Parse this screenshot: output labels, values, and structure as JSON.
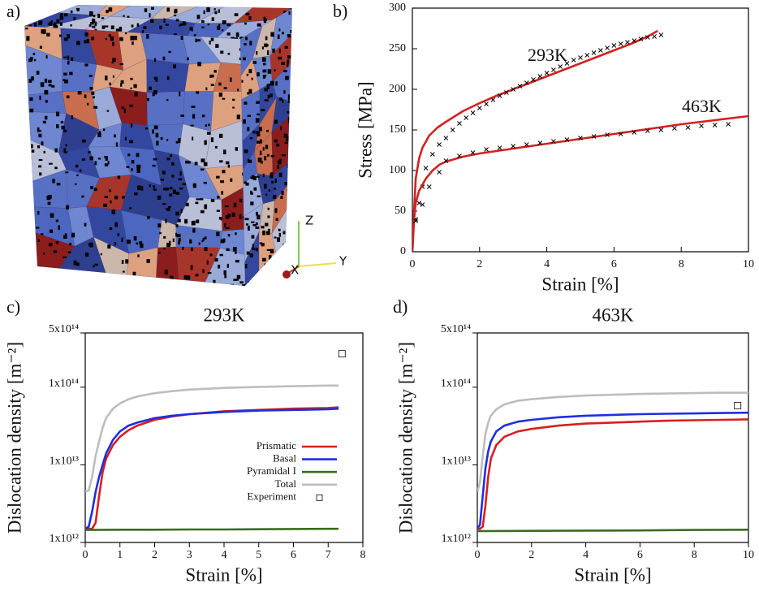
{
  "figure": {
    "panel_labels": [
      "a)",
      "b)",
      "c)",
      "d)"
    ],
    "triad": {
      "x": "X",
      "y": "Y",
      "z": "Z"
    }
  },
  "chart_data": [
    {
      "type": "line",
      "xlabel": "Strain [%]",
      "ylabel": "Stress [MPa]",
      "xlim": [
        0,
        10
      ],
      "xticks": [
        0,
        2,
        4,
        6,
        8,
        10
      ],
      "ylim": [
        0,
        300
      ],
      "yticks": [
        0,
        50,
        100,
        150,
        200,
        250,
        300
      ],
      "legend": false,
      "series": [
        {
          "name": "293K",
          "color": "#d42020",
          "style": "line",
          "x": [
            0,
            0.05,
            0.1,
            0.2,
            0.3,
            0.5,
            0.75,
            1,
            1.5,
            2,
            2.5,
            3,
            3.5,
            4,
            4.5,
            5,
            5.5,
            6,
            6.5,
            7,
            7.3
          ],
          "values": [
            0,
            50,
            90,
            115,
            128,
            143,
            153,
            160,
            173,
            183,
            192,
            200,
            208,
            216,
            224,
            232,
            240,
            248,
            256,
            265,
            272
          ]
        },
        {
          "color": "#000000",
          "style": "x",
          "x": [
            0.1,
            0.2,
            0.3,
            0.4,
            0.6,
            0.8,
            1,
            1.2,
            1.4,
            1.6,
            1.8,
            2,
            2.2,
            2.4,
            2.6,
            2.8,
            3,
            3.2,
            3.4,
            3.6,
            3.8,
            4,
            4.2,
            4.4,
            4.6,
            4.8,
            5,
            5.2,
            5.4,
            5.6,
            5.8,
            6,
            6.2,
            6.4,
            6.6,
            6.8,
            7,
            7.2,
            7.4
          ],
          "values": [
            40,
            60,
            80,
            103,
            120,
            132,
            140,
            150,
            158,
            165,
            171,
            177,
            182,
            187,
            192,
            196,
            200,
            204,
            208,
            212,
            216,
            220,
            224,
            228,
            232,
            236,
            239,
            242,
            245,
            248,
            251,
            254,
            256,
            258,
            260,
            262,
            264,
            265,
            267
          ]
        },
        {
          "name": "463K",
          "color": "#d42020",
          "style": "line",
          "x": [
            0,
            0.05,
            0.1,
            0.2,
            0.4,
            0.6,
            0.8,
            1,
            1.5,
            2,
            3,
            4,
            5,
            6,
            7,
            8,
            9,
            10
          ],
          "values": [
            0,
            40,
            60,
            75,
            90,
            100,
            107,
            111,
            117,
            121,
            127,
            133,
            139,
            145,
            151,
            157,
            162,
            167
          ]
        },
        {
          "color": "#000000",
          "style": "x",
          "x": [
            0.1,
            0.3,
            0.5,
            0.8,
            1,
            1.4,
            1.8,
            2.2,
            2.6,
            3,
            3.4,
            3.8,
            4.2,
            4.6,
            5,
            5.4,
            5.8,
            6.2,
            6.6,
            7,
            7.4,
            7.8,
            8.2,
            8.6,
            9,
            9.4
          ],
          "values": [
            38,
            58,
            80,
            98,
            112,
            118,
            122,
            126,
            128,
            130,
            132,
            134,
            136,
            138,
            140,
            142,
            144,
            145,
            147,
            149,
            150,
            152,
            153,
            155,
            156,
            157
          ]
        }
      ]
    },
    {
      "type": "line",
      "title": "293K",
      "xlabel": "Strain [%]",
      "ylabel": "Dislocation density [m⁻²]",
      "xlim": [
        0,
        8
      ],
      "xticks": [
        0,
        1,
        2,
        3,
        4,
        5,
        6,
        7,
        8
      ],
      "yscale": "log",
      "ylim": [
        1000000000000.0,
        500000000000000.0
      ],
      "yticks": [
        {
          "value": 1000000000000.0,
          "label": "1x10¹²"
        },
        {
          "value": 10000000000000.0,
          "label": "1x10¹³"
        },
        {
          "value": 100000000000000.0,
          "label": "1x10¹⁴"
        },
        {
          "value": 500000000000000.0,
          "label": "5x10¹⁴"
        }
      ],
      "legend": true,
      "series": [
        {
          "name": "Prismatic",
          "color": "#d71f1f",
          "style": "line",
          "x": [
            0,
            0.1,
            0.2,
            0.3,
            0.4,
            0.5,
            0.6,
            0.8,
            1,
            1.25,
            1.5,
            2,
            2.5,
            3,
            4,
            5,
            6,
            7,
            7.3
          ],
          "values": [
            1500000000000.0,
            1500000000000.0,
            1500000000000.0,
            1800000000000.0,
            4000000000000.0,
            8000000000000.0,
            12000000000000.0,
            18000000000000.0,
            23000000000000.0,
            28000000000000.0,
            32000000000000.0,
            38000000000000.0,
            42000000000000.0,
            45000000000000.0,
            49000000000000.0,
            51000000000000.0,
            53000000000000.0,
            54000000000000.0,
            55000000000000.0
          ]
        },
        {
          "name": "Basal",
          "color": "#1f2ee0",
          "style": "line",
          "x": [
            0,
            0.1,
            0.2,
            0.3,
            0.4,
            0.5,
            0.6,
            0.8,
            1,
            1.25,
            1.5,
            2,
            2.5,
            3,
            4,
            5,
            6,
            7,
            7.3
          ],
          "values": [
            1500000000000.0,
            1600000000000.0,
            2500000000000.0,
            4500000000000.0,
            7000000000000.0,
            10000000000000.0,
            14000000000000.0,
            21000000000000.0,
            27000000000000.0,
            32000000000000.0,
            35000000000000.0,
            40000000000000.0,
            43000000000000.0,
            45000000000000.0,
            48000000000000.0,
            50000000000000.0,
            51000000000000.0,
            52000000000000.0,
            53000000000000.0
          ]
        },
        {
          "name": "Pyramidal I",
          "color": "#3b6b1c",
          "style": "line",
          "x": [
            0,
            1,
            2,
            3,
            4,
            5,
            6,
            7,
            7.3
          ],
          "values": [
            1450000000000.0,
            1460000000000.0,
            1460000000000.0,
            1470000000000.0,
            1470000000000.0,
            1480000000000.0,
            1490000000000.0,
            1500000000000.0,
            1500000000000.0
          ]
        },
        {
          "name": "Total",
          "color": "#bdbdbd",
          "style": "line",
          "x": [
            0,
            0.1,
            0.2,
            0.3,
            0.4,
            0.5,
            0.6,
            0.8,
            1,
            1.25,
            1.5,
            2,
            2.5,
            3,
            4,
            5,
            6,
            7,
            7.3
          ],
          "values": [
            4500000000000.0,
            4700000000000.0,
            7000000000000.0,
            13000000000000.0,
            20000000000000.0,
            30000000000000.0,
            40000000000000.0,
            53000000000000.0,
            62000000000000.0,
            70000000000000.0,
            76000000000000.0,
            84000000000000.0,
            89000000000000.0,
            93000000000000.0,
            98000000000000.0,
            101000000000000.0,
            103000000000000.0,
            105000000000000.0,
            105000000000000.0
          ]
        },
        {
          "name": "Experiment",
          "color": "#333333",
          "style": "square",
          "x": [
            7.4
          ],
          "values": [
            270000000000000.0
          ]
        }
      ]
    },
    {
      "type": "line",
      "title": "463K",
      "xlabel": "Strain [%]",
      "ylabel": "Dislocation density [m⁻²]",
      "xlim": [
        0,
        10
      ],
      "xticks": [
        0,
        2,
        4,
        6,
        8,
        10
      ],
      "yscale": "log",
      "ylim": [
        1000000000000.0,
        500000000000000.0
      ],
      "yticks": [
        {
          "value": 1000000000000.0,
          "label": "1x10¹²"
        },
        {
          "value": 10000000000000.0,
          "label": "1x10¹³"
        },
        {
          "value": 100000000000000.0,
          "label": "1x10¹⁴"
        },
        {
          "value": 500000000000000.0,
          "label": "5x10¹⁴"
        }
      ],
      "legend": false,
      "series": [
        {
          "name": "Prismatic",
          "color": "#d71f1f",
          "style": "line",
          "x": [
            0,
            0.1,
            0.2,
            0.3,
            0.4,
            0.5,
            0.7,
            1,
            1.5,
            2,
            3,
            4,
            5,
            6,
            7,
            8,
            9,
            10
          ],
          "values": [
            1500000000000.0,
            1500000000000.0,
            1600000000000.0,
            3000000000000.0,
            7000000000000.0,
            12000000000000.0,
            18000000000000.0,
            23000000000000.0,
            27000000000000.0,
            29000000000000.0,
            32000000000000.0,
            34000000000000.0,
            35000000000000.0,
            36000000000000.0,
            37000000000000.0,
            37500000000000.0,
            38000000000000.0,
            38500000000000.0
          ]
        },
        {
          "name": "Basal",
          "color": "#1f2ee0",
          "style": "line",
          "x": [
            0,
            0.1,
            0.2,
            0.3,
            0.4,
            0.5,
            0.7,
            1,
            1.5,
            2,
            3,
            4,
            5,
            6,
            7,
            8,
            9,
            10
          ],
          "values": [
            1500000000000.0,
            1700000000000.0,
            4000000000000.0,
            9000000000000.0,
            15000000000000.0,
            20000000000000.0,
            27000000000000.0,
            32000000000000.0,
            36000000000000.0,
            38000000000000.0,
            41000000000000.0,
            43000000000000.0,
            44000000000000.0,
            45000000000000.0,
            45500000000000.0,
            46000000000000.0,
            46500000000000.0,
            47000000000000.0
          ]
        },
        {
          "name": "Pyramidal I",
          "color": "#3b6b1c",
          "style": "line",
          "x": [
            0,
            2,
            4,
            6,
            8,
            10
          ],
          "values": [
            1400000000000.0,
            1410000000000.0,
            1420000000000.0,
            1430000000000.0,
            1450000000000.0,
            1460000000000.0
          ]
        },
        {
          "name": "Total",
          "color": "#bdbdbd",
          "style": "line",
          "x": [
            0,
            0.1,
            0.2,
            0.3,
            0.4,
            0.5,
            0.7,
            1,
            1.5,
            2,
            3,
            4,
            5,
            6,
            7,
            8,
            9,
            10
          ],
          "values": [
            4500000000000.0,
            6000000000000.0,
            13000000000000.0,
            25000000000000.0,
            35000000000000.0,
            43000000000000.0,
            52000000000000.0,
            60000000000000.0,
            67000000000000.0,
            70000000000000.0,
            75000000000000.0,
            78000000000000.0,
            80000000000000.0,
            82000000000000.0,
            83000000000000.0,
            84000000000000.0,
            85000000000000.0,
            85000000000000.0
          ]
        },
        {
          "name": "Experiment",
          "color": "#333333",
          "style": "square",
          "x": [
            9.6
          ],
          "values": [
            58000000000000.0
          ]
        }
      ]
    }
  ]
}
